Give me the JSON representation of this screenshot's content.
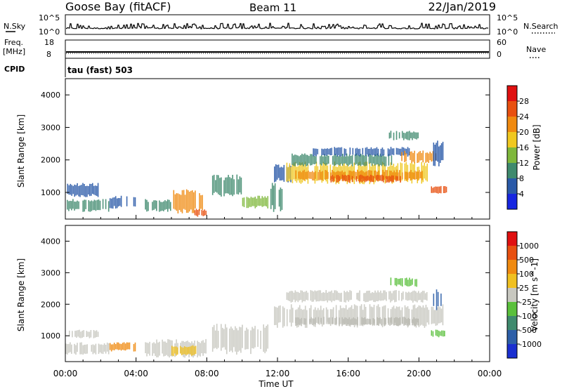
{
  "header": {
    "station": "Goose Bay (fitACF)",
    "beam": "Beam 11",
    "date": "22/Jan/2019"
  },
  "summary": {
    "nsky_label": "N.Sky",
    "nsky_ticks": [
      "10^5",
      "10^0"
    ],
    "nsearch_label": "N.Search",
    "nsearch_ticks": [
      "10^5",
      "10^0"
    ],
    "freq_label_1": "Freq.",
    "freq_label_2": "[MHz]",
    "freq_ticks": [
      "18",
      "8"
    ],
    "nave_label": "Nave",
    "nave_ticks": [
      "60",
      "0"
    ],
    "cpid_label": "CPID",
    "cpid_value": "tau (fast) 503"
  },
  "chart_data": [
    {
      "type": "heatmap",
      "panel": "power",
      "ylabel": "Slant Range [km]",
      "yticks": [
        "1000",
        "2000",
        "3000",
        "4000"
      ],
      "y_range_km": [
        180,
        4500
      ],
      "x_range_hours": [
        0,
        24
      ],
      "colorbar_label": "Power [dB]",
      "colorbar_ticks": [
        "4",
        "8",
        "12",
        "16",
        "20",
        "24",
        "28"
      ],
      "colorbar_colors": [
        "#1726e0",
        "#2a5aa8",
        "#3f8a6e",
        "#7fb83c",
        "#f0c820",
        "#f08a10",
        "#e85010",
        "#e01010"
      ],
      "patches": [
        {
          "t0": 0.1,
          "t1": 1.9,
          "r0": 850,
          "r1": 1300,
          "color": "#2a5aa8"
        },
        {
          "t0": 0.0,
          "t1": 2.5,
          "r0": 400,
          "r1": 800,
          "color": "#3f8a6e"
        },
        {
          "t0": 2.5,
          "t1": 4.0,
          "r0": 500,
          "r1": 900,
          "color": "#2a5aa8"
        },
        {
          "t0": 4.5,
          "t1": 6.0,
          "r0": 400,
          "r1": 800,
          "color": "#3f8a6e"
        },
        {
          "t0": 6.1,
          "t1": 7.8,
          "r0": 350,
          "r1": 1100,
          "color": "#f08a10"
        },
        {
          "t0": 7.3,
          "t1": 8.0,
          "r0": 250,
          "r1": 500,
          "color": "#e85010"
        },
        {
          "t0": 8.3,
          "t1": 10.0,
          "r0": 850,
          "r1": 1550,
          "color": "#3f8a6e"
        },
        {
          "t0": 10.0,
          "t1": 11.5,
          "r0": 500,
          "r1": 900,
          "color": "#7fb83c"
        },
        {
          "t0": 11.6,
          "t1": 12.3,
          "r0": 400,
          "r1": 1300,
          "color": "#3f8a6e"
        },
        {
          "t0": 11.8,
          "t1": 12.8,
          "r0": 1300,
          "r1": 1900,
          "color": "#2a5aa8"
        },
        {
          "t0": 12.5,
          "t1": 20.6,
          "r0": 1250,
          "r1": 1950,
          "color": "#f0c820"
        },
        {
          "t0": 13.0,
          "t1": 20.3,
          "r0": 1350,
          "r1": 1700,
          "color": "#f08a10"
        },
        {
          "t0": 15.0,
          "t1": 19.0,
          "r0": 1300,
          "r1": 1550,
          "color": "#e85010"
        },
        {
          "t0": 12.8,
          "t1": 18.5,
          "r0": 1800,
          "r1": 2200,
          "color": "#3f8a6e"
        },
        {
          "t0": 14.0,
          "t1": 19.5,
          "r0": 2100,
          "r1": 2400,
          "color": "#2a5aa8"
        },
        {
          "t0": 19.0,
          "t1": 21.0,
          "r0": 1900,
          "r1": 2300,
          "color": "#f08a10"
        },
        {
          "t0": 20.8,
          "t1": 21.4,
          "r0": 1800,
          "r1": 2600,
          "color": "#2a5aa8"
        },
        {
          "t0": 20.6,
          "t1": 21.6,
          "r0": 950,
          "r1": 1200,
          "color": "#e85010"
        },
        {
          "t0": 18.3,
          "t1": 20.0,
          "r0": 2600,
          "r1": 2900,
          "color": "#3f8a6e"
        }
      ]
    },
    {
      "type": "heatmap",
      "panel": "velocity",
      "ylabel": "Slant Range [km]",
      "yticks": [
        "1000",
        "2000",
        "3000",
        "4000"
      ],
      "y_range_km": [
        180,
        4500
      ],
      "x_range_hours": [
        0,
        24
      ],
      "xlabel": "Time UT",
      "xticks": [
        "00:00",
        "04:00",
        "08:00",
        "12:00",
        "16:00",
        "20:00",
        "00:00"
      ],
      "colorbar_label": "Velocity [m s^-1]",
      "colorbar_ticks": [
        "1000",
        "500",
        "100",
        "25",
        "-25",
        "-100",
        "-500",
        "-1000"
      ],
      "colorbar_colors": [
        "#1a2fd0",
        "#2d5fa8",
        "#3f8a6e",
        "#5ac03c",
        "#c8c8c0",
        "#f0c020",
        "#f08a10",
        "#e85010",
        "#e01010"
      ],
      "patches": [
        {
          "t0": 0.0,
          "t1": 2.5,
          "r0": 400,
          "r1": 800,
          "color": "#c8c8c0"
        },
        {
          "t0": 0.2,
          "t1": 1.9,
          "r0": 900,
          "r1": 1200,
          "color": "#c8c8c0"
        },
        {
          "t0": 4.5,
          "t1": 8.0,
          "r0": 300,
          "r1": 900,
          "color": "#c8c8c0"
        },
        {
          "t0": 8.3,
          "t1": 11.5,
          "r0": 400,
          "r1": 1400,
          "color": "#c8c8c0"
        },
        {
          "t0": 11.8,
          "t1": 21.4,
          "r0": 1250,
          "r1": 2000,
          "color": "#c8c8c0"
        },
        {
          "t0": 13.0,
          "t1": 20.0,
          "r0": 1300,
          "r1": 1600,
          "color": "#b8b8b0"
        },
        {
          "t0": 12.5,
          "t1": 20.5,
          "r0": 2050,
          "r1": 2450,
          "color": "#c8c8c0"
        },
        {
          "t0": 18.3,
          "t1": 20.0,
          "r0": 2550,
          "r1": 2850,
          "color": "#5ac03c"
        },
        {
          "t0": 20.6,
          "t1": 21.5,
          "r0": 950,
          "r1": 1200,
          "color": "#5ac03c"
        },
        {
          "t0": 20.8,
          "t1": 21.3,
          "r0": 1800,
          "r1": 2500,
          "color": "#2d5fa8"
        },
        {
          "t0": 6.0,
          "t1": 7.5,
          "r0": 350,
          "r1": 700,
          "color": "#f0c020"
        },
        {
          "t0": 2.5,
          "t1": 4.0,
          "r0": 500,
          "r1": 800,
          "color": "#f08a10"
        }
      ]
    }
  ]
}
